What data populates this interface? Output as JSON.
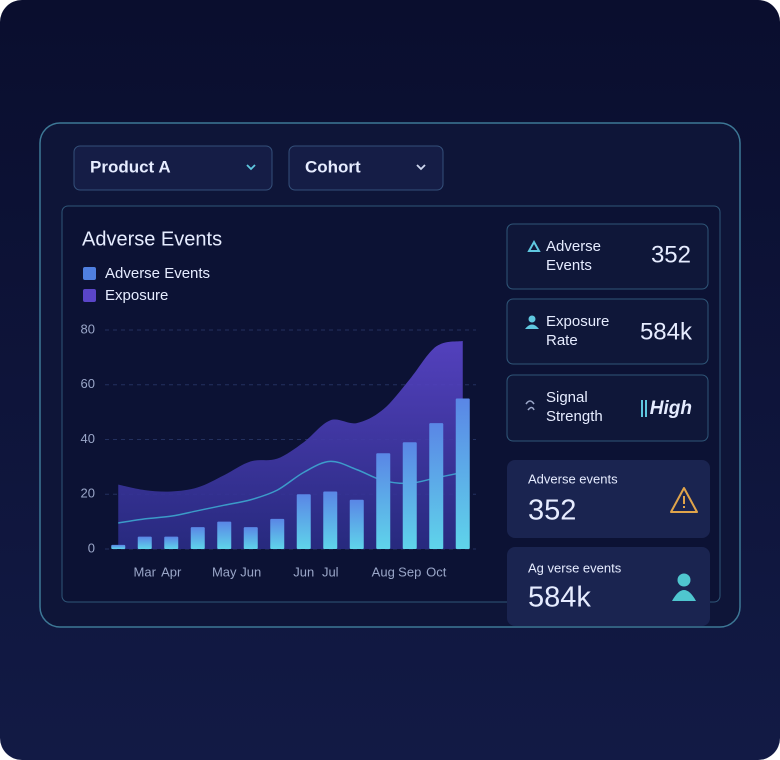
{
  "filters": [
    "Product A",
    "Cohort"
  ],
  "chart_data": {
    "type": "bar_area",
    "title": "Adverse Events",
    "categories": [
      null,
      "Mar",
      "Apr",
      null,
      "May",
      "Jun",
      null,
      "Jun",
      "Jul",
      null,
      "Aug",
      "Sep",
      "Oct",
      null
    ],
    "series": [
      {
        "name": "Adverse Events",
        "color": "#4f7fe0",
        "values": [
          1.5,
          4.5,
          4.5,
          8,
          10,
          8,
          11,
          20,
          21,
          18,
          35,
          39,
          46,
          55
        ]
      },
      {
        "name": "Exposure",
        "color": "#5a45c8",
        "values": [
          23.5,
          21.5,
          21,
          22.5,
          27,
          32,
          33,
          39,
          47,
          46,
          51,
          62,
          74,
          76
        ]
      },
      {
        "color": "#3fb6d8",
        "values": [
          9.5,
          11,
          12,
          14,
          16,
          18,
          21.5,
          28,
          32,
          29,
          25,
          24,
          26,
          28
        ]
      }
    ],
    "ylim": [
      0,
      80
    ],
    "yticks": [
      0,
      20,
      40,
      60,
      80
    ],
    "grid": true
  },
  "stats": [
    {
      "label": [
        "Adverse",
        "Events"
      ],
      "value": "352"
    },
    {
      "label": [
        "Exposure",
        "Rate"
      ],
      "value": "584k"
    },
    {
      "label": [
        "Signal",
        "Strength"
      ],
      "value": "High"
    }
  ],
  "summary": [
    {
      "label": "Adverse events",
      "value": "352"
    },
    {
      "label": "Ag verse events",
      "value": "584k"
    }
  ]
}
